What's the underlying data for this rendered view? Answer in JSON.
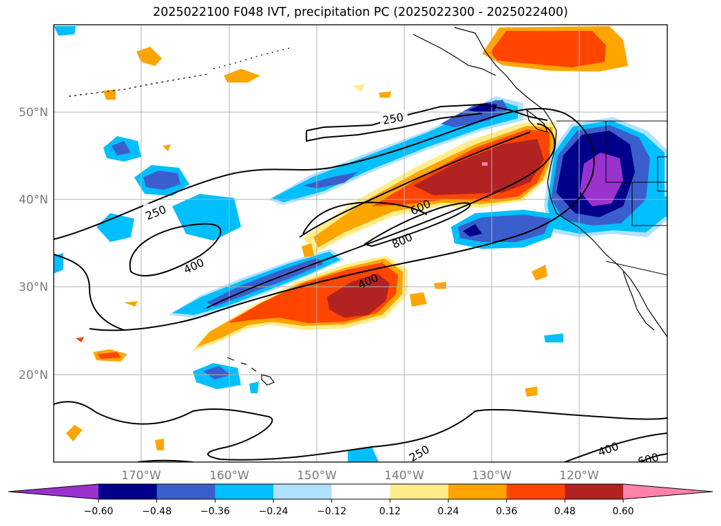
{
  "title": "2025022100 F048 IVT, precipitation PC (2025022300 - 2025022400)",
  "longitude_labels": [
    "170°W",
    "160°W",
    "150°W",
    "140°W",
    "130°W",
    "120°W"
  ],
  "latitude_labels": [
    "50°N",
    "40°N",
    "30°N",
    "20°N"
  ],
  "contour_labels": [
    "250",
    "250",
    "400",
    "600",
    "800",
    "400",
    "250",
    "400",
    "600"
  ],
  "colorbar": {
    "tick_labels": [
      "−0.60",
      "−0.48",
      "−0.36",
      "−0.24",
      "−0.12",
      "0.12",
      "0.24",
      "0.36",
      "0.48",
      "0.60"
    ],
    "colors": [
      "#9a32cd",
      "#00008b",
      "#3a5fcd",
      "#00bfff",
      "#b0e2ff",
      "#ffffff",
      "#ffec8b",
      "#ffa500",
      "#ff4500",
      "#b22222",
      "#ff82ab"
    ]
  }
}
